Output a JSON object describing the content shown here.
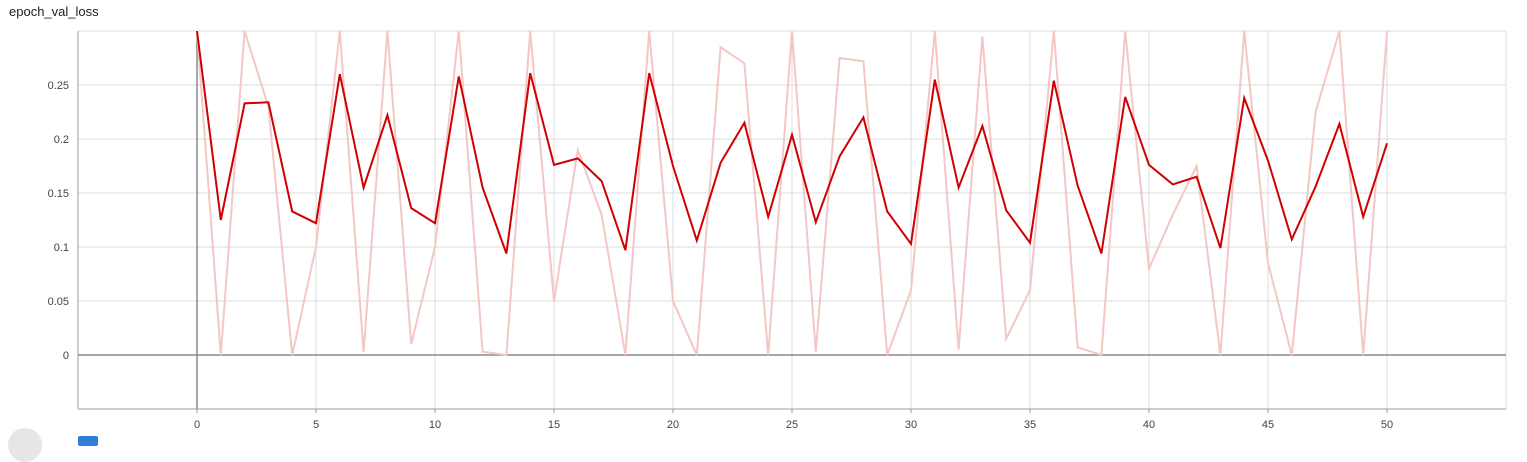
{
  "chart_data": {
    "type": "line",
    "title": "epoch_val_loss",
    "xlim": [
      -5,
      55
    ],
    "ylim": [
      -0.05,
      0.3
    ],
    "x_ticks": [
      0,
      5,
      10,
      15,
      20,
      25,
      30,
      35,
      40,
      45,
      50
    ],
    "y_ticks": [
      0,
      0.05,
      0.1,
      0.15,
      0.2,
      0.25
    ],
    "y_tick_labels": [
      "0",
      "0.05",
      "0.1",
      "0.15",
      "0.2",
      "0.25"
    ],
    "grid": true,
    "series": [
      {
        "role": "raw",
        "color": "#f4c7c5",
        "x": [
          0,
          1,
          2,
          3,
          4,
          5,
          6,
          7,
          8,
          9,
          10,
          11,
          12,
          13,
          14,
          15,
          16,
          17,
          18,
          19,
          20,
          21,
          22,
          23,
          24,
          25,
          26,
          27,
          28,
          29,
          30,
          31,
          32,
          33,
          34,
          35,
          36,
          37,
          38,
          39,
          40,
          41,
          42,
          43,
          44,
          45,
          46,
          47,
          48,
          49,
          50
        ],
        "values": [
          0.3,
          0.0,
          0.3,
          0.23,
          0.0,
          0.1,
          0.3,
          0.003,
          0.3,
          0.01,
          0.1,
          0.3,
          0.003,
          0.0,
          0.3,
          0.05,
          0.19,
          0.13,
          0.0,
          0.3,
          0.05,
          0.0,
          0.285,
          0.27,
          0.0,
          0.3,
          0.003,
          0.275,
          0.272,
          0.0,
          0.06,
          0.3,
          0.005,
          0.295,
          0.015,
          0.06,
          0.3,
          0.007,
          0.0,
          0.3,
          0.08,
          0.13,
          0.175,
          0.0,
          0.3,
          0.085,
          0.0,
          0.225,
          0.3,
          0.0,
          0.3
        ]
      },
      {
        "role": "smoothed",
        "color": "#d00000",
        "x": [
          0,
          1,
          2,
          3,
          4,
          5,
          6,
          7,
          8,
          9,
          10,
          11,
          12,
          13,
          14,
          15,
          16,
          17,
          18,
          19,
          20,
          21,
          22,
          23,
          24,
          25,
          26,
          27,
          28,
          29,
          30,
          31,
          32,
          33,
          34,
          35,
          36,
          37,
          38,
          39,
          40,
          41,
          42,
          43,
          44,
          45,
          46,
          47,
          48,
          49,
          50
        ],
        "values": [
          0.3,
          0.125,
          0.233,
          0.234,
          0.133,
          0.122,
          0.26,
          0.155,
          0.222,
          0.136,
          0.122,
          0.258,
          0.155,
          0.094,
          0.261,
          0.176,
          0.182,
          0.161,
          0.097,
          0.261,
          0.175,
          0.106,
          0.178,
          0.215,
          0.128,
          0.204,
          0.123,
          0.184,
          0.22,
          0.133,
          0.103,
          0.255,
          0.155,
          0.212,
          0.134,
          0.104,
          0.254,
          0.157,
          0.094,
          0.239,
          0.176,
          0.158,
          0.165,
          0.099,
          0.238,
          0.18,
          0.107,
          0.156,
          0.214,
          0.128,
          0.196
        ]
      }
    ]
  }
}
